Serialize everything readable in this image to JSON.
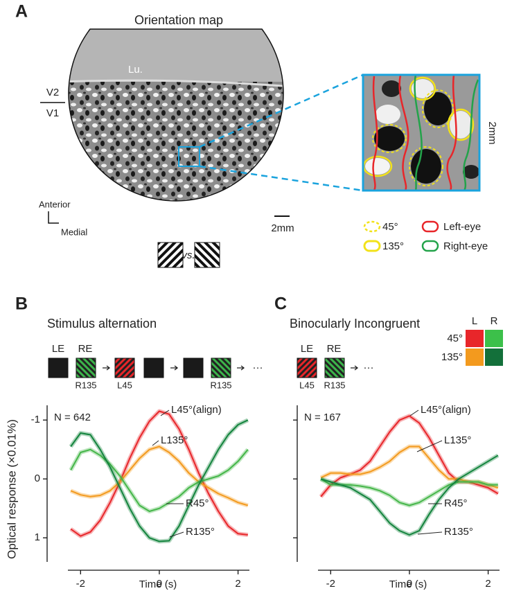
{
  "panel_a": {
    "label": "A",
    "title": "Orientation map",
    "region_lu": "Lu.",
    "region_v2": "V2",
    "region_v1": "V1",
    "axis_anterior": "Anterior",
    "axis_medial": "Medial",
    "scale_bar": "2mm",
    "inset_scale": "2mm",
    "versus": "vs.",
    "legend": {
      "deg45": "45°",
      "deg135": "135°",
      "left_eye": "Left-eye",
      "right_eye": "Right-eye"
    }
  },
  "chart_data": [
    {
      "type": "line",
      "label": "B",
      "title": "Stimulus alternation",
      "annotation": "N = 642",
      "stimulus": {
        "eye_labels": [
          "LE",
          "RE"
        ],
        "stim_labels": [
          "R135",
          "L45",
          "R135"
        ],
        "ellipsis": "···"
      },
      "x_label": "Time (s)",
      "y_label": "Optical response (×0.01%)",
      "x": [
        -2.25,
        -2,
        -1.75,
        -1.5,
        -1.25,
        -1,
        -0.75,
        -0.5,
        -0.25,
        0,
        0.25,
        0.5,
        0.75,
        1,
        1.25,
        1.5,
        1.75,
        2,
        2.25
      ],
      "series": [
        {
          "name": "L45°(align)",
          "color": "#e8262a",
          "values": [
            0.85,
            0.97,
            0.9,
            0.7,
            0.4,
            0.05,
            -0.35,
            -0.7,
            -0.98,
            -1.15,
            -1.1,
            -0.85,
            -0.5,
            -0.1,
            0.25,
            0.55,
            0.8,
            0.93,
            0.95
          ]
        },
        {
          "name": "L135°",
          "color": "#f39a1e",
          "values": [
            0.2,
            0.27,
            0.3,
            0.28,
            0.2,
            0.05,
            -0.15,
            -0.35,
            -0.5,
            -0.55,
            -0.45,
            -0.3,
            -0.1,
            0.05,
            0.15,
            0.25,
            0.32,
            0.4,
            0.45
          ]
        },
        {
          "name": "R45°",
          "color": "#45b649",
          "values": [
            -0.15,
            -0.45,
            -0.5,
            -0.4,
            -0.25,
            -0.05,
            0.2,
            0.45,
            0.55,
            0.5,
            0.4,
            0.3,
            0.15,
            0.05,
            0.0,
            -0.05,
            -0.15,
            -0.3,
            -0.5
          ]
        },
        {
          "name": "R135°",
          "color": "#13843d",
          "values": [
            -0.55,
            -0.78,
            -0.75,
            -0.5,
            -0.2,
            0.15,
            0.5,
            0.8,
            1.0,
            1.06,
            1.05,
            0.8,
            0.45,
            0.1,
            -0.2,
            -0.5,
            -0.75,
            -0.92,
            -1.0
          ]
        }
      ],
      "xlim": [
        -2.85,
        2.5
      ],
      "ylim": [
        1.55,
        -1.25
      ],
      "xticks": [
        -2,
        0,
        2
      ],
      "yticks": [
        -1,
        0,
        1
      ],
      "show_ytick_labels": true
    },
    {
      "type": "line",
      "label": "C",
      "title": "Binocularly Incongruent",
      "annotation": "N = 167",
      "stimulus": {
        "eye_labels": [
          "LE",
          "RE"
        ],
        "stim_labels": [
          "L45",
          "R135"
        ],
        "ellipsis": "···"
      },
      "key": {
        "columns": [
          "L",
          "R"
        ],
        "rows": [
          "45°",
          "135°"
        ]
      },
      "x_label": "Time (s)",
      "x": [
        -2.25,
        -2,
        -1.75,
        -1.5,
        -1.25,
        -1,
        -0.75,
        -0.5,
        -0.25,
        0,
        0.25,
        0.5,
        0.75,
        1,
        1.25,
        1.5,
        1.75,
        2,
        2.25
      ],
      "series": [
        {
          "name": "L45°(align)",
          "color": "#e8262a",
          "values": [
            0.3,
            0.1,
            -0.02,
            -0.08,
            -0.15,
            -0.3,
            -0.55,
            -0.8,
            -1.0,
            -1.07,
            -0.95,
            -0.7,
            -0.4,
            -0.1,
            0.05,
            0.05,
            0.1,
            0.15,
            0.25
          ]
        },
        {
          "name": "L135°",
          "color": "#f39a1e",
          "values": [
            -0.02,
            -0.1,
            -0.1,
            -0.08,
            -0.08,
            -0.12,
            -0.2,
            -0.3,
            -0.45,
            -0.55,
            -0.55,
            -0.35,
            -0.15,
            0.0,
            0.0,
            0.05,
            0.05,
            0.1,
            0.15
          ]
        },
        {
          "name": "R45°",
          "color": "#45b649",
          "values": [
            0,
            0.1,
            0.1,
            0.1,
            0.12,
            0.15,
            0.2,
            0.28,
            0.4,
            0.45,
            0.4,
            0.3,
            0.2,
            0.1,
            0.05,
            0.05,
            0.05,
            0.1,
            0.1
          ]
        },
        {
          "name": "R135°",
          "color": "#13843d",
          "values": [
            0.0,
            0.05,
            0.1,
            0.15,
            0.25,
            0.35,
            0.55,
            0.75,
            0.88,
            0.95,
            0.88,
            0.6,
            0.35,
            0.15,
            0,
            -0.1,
            -0.2,
            -0.3,
            -0.4
          ]
        }
      ],
      "xlim": [
        -2.85,
        2.5
      ],
      "ylim": [
        1.55,
        -1.25
      ],
      "xticks": [
        -2,
        0,
        2
      ],
      "yticks": [
        -1,
        0,
        1
      ],
      "show_ytick_labels": false
    }
  ]
}
